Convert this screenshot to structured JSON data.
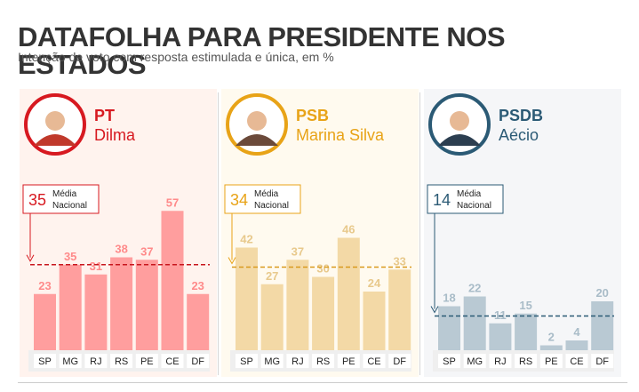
{
  "header": {
    "title": "DATAFOLHA PARA PRESIDENTE NOS ESTADOS",
    "subtitle": "Intenção de voto com resposta estimulada e única, em %"
  },
  "avg_label_line1": "Média",
  "avg_label_line2": "Nacional",
  "chart_data": [
    {
      "type": "bar",
      "party": "PT",
      "candidate": "Dilma",
      "national_average": 35,
      "categories": [
        "SP",
        "MG",
        "RJ",
        "RS",
        "PE",
        "CE",
        "DF"
      ],
      "values": [
        23,
        35,
        31,
        38,
        37,
        57,
        23
      ],
      "ylim": [
        0,
        60
      ],
      "colors": {
        "bar": "#ff9e9e",
        "label": "#ff8a8a",
        "accent": "#d71920",
        "bg": "#fff3ee",
        "avg_line": "#c8161d"
      }
    },
    {
      "type": "bar",
      "party": "PSB",
      "candidate": "Marina Silva",
      "national_average": 34,
      "categories": [
        "SP",
        "MG",
        "RJ",
        "RS",
        "PE",
        "CE",
        "DF"
      ],
      "values": [
        42,
        27,
        37,
        30,
        46,
        24,
        33
      ],
      "ylim": [
        0,
        60
      ],
      "colors": {
        "bar": "#f3d9a6",
        "label": "#e8c98c",
        "accent": "#e8a317",
        "bg": "#fffaef",
        "avg_line": "#d99a1e"
      }
    },
    {
      "type": "bar",
      "party": "PSDB",
      "candidate": "Aécio",
      "national_average": 14,
      "categories": [
        "SP",
        "MG",
        "RJ",
        "RS",
        "PE",
        "CE",
        "DF"
      ],
      "values": [
        18,
        22,
        11,
        15,
        2,
        4,
        20
      ],
      "ylim": [
        0,
        60
      ],
      "colors": {
        "bar": "#b9c9d3",
        "label": "#a9bcc8",
        "accent": "#2b5a75",
        "bg": "#f5f6f8",
        "avg_line": "#2b5a75"
      }
    }
  ]
}
